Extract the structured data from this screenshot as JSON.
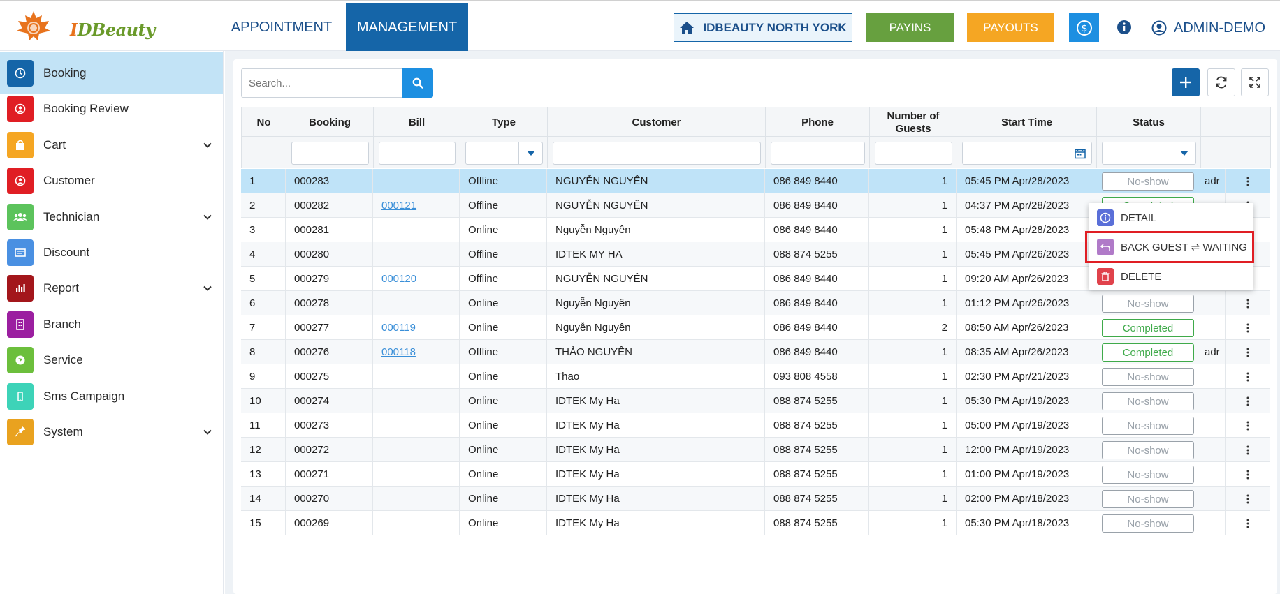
{
  "header": {
    "logo_text_i": "I",
    "logo_text_rest": "DBeauty",
    "tabs": [
      {
        "label": "APPOINTMENT",
        "active": false
      },
      {
        "label": "MANAGEMENT",
        "active": true
      }
    ],
    "branch_label": "IDBEAUTY NORTH YORK",
    "payins_label": "PAYINS",
    "payouts_label": "PAYOUTS",
    "user_label": "ADMIN-DEMO",
    "colors": {
      "primary": "#1565a8",
      "payins": "#67a03f",
      "payouts": "#f5a623",
      "accent": "#1d8fe1"
    }
  },
  "sidebar": {
    "items": [
      {
        "label": "Booking",
        "icon": "clock-icon",
        "color": "#1565a8",
        "active": true,
        "expandable": false
      },
      {
        "label": "Booking Review",
        "icon": "review-icon",
        "color": "#e01e24",
        "active": false,
        "expandable": false
      },
      {
        "label": "Cart",
        "icon": "bag-icon",
        "color": "#f5a623",
        "active": false,
        "expandable": true
      },
      {
        "label": "Customer",
        "icon": "user-icon",
        "color": "#e01e24",
        "active": false,
        "expandable": false
      },
      {
        "label": "Technician",
        "icon": "group-icon",
        "color": "#5cc35c",
        "active": false,
        "expandable": true
      },
      {
        "label": "Discount",
        "icon": "card-icon",
        "color": "#4a90e2",
        "active": false,
        "expandable": false
      },
      {
        "label": "Report",
        "icon": "chart-icon",
        "color": "#a3161b",
        "active": false,
        "expandable": true
      },
      {
        "label": "Branch",
        "icon": "building-icon",
        "color": "#9b1fa0",
        "active": false,
        "expandable": false
      },
      {
        "label": "Service",
        "icon": "globe-icon",
        "color": "#6cbf3c",
        "active": false,
        "expandable": false
      },
      {
        "label": "Sms Campaign",
        "icon": "phone-icon",
        "color": "#3dd3b8",
        "active": false,
        "expandable": false
      },
      {
        "label": "System",
        "icon": "wrench-icon",
        "color": "#e9a21f",
        "active": false,
        "expandable": true
      }
    ]
  },
  "toolbar": {
    "search_placeholder": "Search..."
  },
  "table": {
    "columns": [
      "No",
      "Booking",
      "Bill",
      "Type",
      "Customer",
      "Phone",
      "Number of Guests",
      "Start Time",
      "Status"
    ],
    "rows": [
      {
        "no": "1",
        "booking": "000283",
        "bill": "",
        "type": "Offline",
        "customer": "NGUYỄN NGUYÊN",
        "phone": "086 849 8440",
        "guests": "1",
        "start": "05:45 PM Apr/28/2023",
        "status": "No-show",
        "extra": "adr",
        "selected": true
      },
      {
        "no": "2",
        "booking": "000282",
        "bill": "000121",
        "type": "Offline",
        "customer": "NGUYỄN NGUYÊN",
        "phone": "086 849 8440",
        "guests": "1",
        "start": "04:37 PM Apr/28/2023",
        "status": "Completed",
        "extra": "",
        "selected": false
      },
      {
        "no": "3",
        "booking": "000281",
        "bill": "",
        "type": "Online",
        "customer": "Nguyễn Nguyên",
        "phone": "086 849 8440",
        "guests": "1",
        "start": "05:48 PM Apr/28/2023",
        "status": "",
        "extra": "",
        "selected": false
      },
      {
        "no": "4",
        "booking": "000280",
        "bill": "",
        "type": "Offline",
        "customer": "IDTEK MY HA",
        "phone": "088 874 5255",
        "guests": "1",
        "start": "05:45 PM Apr/26/2023",
        "status": "",
        "extra": "",
        "selected": false
      },
      {
        "no": "5",
        "booking": "000279",
        "bill": "000120",
        "type": "Offline",
        "customer": "NGUYỄN NGUYÊN",
        "phone": "086 849 8440",
        "guests": "1",
        "start": "09:20 AM Apr/26/2023",
        "status": "",
        "extra": "",
        "selected": false
      },
      {
        "no": "6",
        "booking": "000278",
        "bill": "",
        "type": "Online",
        "customer": "Nguyễn Nguyên",
        "phone": "086 849 8440",
        "guests": "1",
        "start": "01:12 PM Apr/26/2023",
        "status": "No-show",
        "extra": "",
        "selected": false
      },
      {
        "no": "7",
        "booking": "000277",
        "bill": "000119",
        "type": "Online",
        "customer": "Nguyễn Nguyên",
        "phone": "086 849 8440",
        "guests": "2",
        "start": "08:50 AM Apr/26/2023",
        "status": "Completed",
        "extra": "",
        "selected": false
      },
      {
        "no": "8",
        "booking": "000276",
        "bill": "000118",
        "type": "Offline",
        "customer": "THẢO NGUYÊN",
        "phone": "086 849 8440",
        "guests": "1",
        "start": "08:35 AM Apr/26/2023",
        "status": "Completed",
        "extra": "adr",
        "selected": false
      },
      {
        "no": "9",
        "booking": "000275",
        "bill": "",
        "type": "Online",
        "customer": "Thao",
        "phone": "093 808 4558",
        "guests": "1",
        "start": "02:30 PM Apr/21/2023",
        "status": "No-show",
        "extra": "",
        "selected": false
      },
      {
        "no": "10",
        "booking": "000274",
        "bill": "",
        "type": "Online",
        "customer": "IDTEK My Ha",
        "phone": "088 874 5255",
        "guests": "1",
        "start": "05:30 PM Apr/19/2023",
        "status": "No-show",
        "extra": "",
        "selected": false
      },
      {
        "no": "11",
        "booking": "000273",
        "bill": "",
        "type": "Online",
        "customer": "IDTEK My Ha",
        "phone": "088 874 5255",
        "guests": "1",
        "start": "05:00 PM Apr/19/2023",
        "status": "No-show",
        "extra": "",
        "selected": false
      },
      {
        "no": "12",
        "booking": "000272",
        "bill": "",
        "type": "Online",
        "customer": "IDTEK My Ha",
        "phone": "088 874 5255",
        "guests": "1",
        "start": "12:00 PM Apr/19/2023",
        "status": "No-show",
        "extra": "",
        "selected": false
      },
      {
        "no": "13",
        "booking": "000271",
        "bill": "",
        "type": "Online",
        "customer": "IDTEK My Ha",
        "phone": "088 874 5255",
        "guests": "1",
        "start": "01:00 PM Apr/19/2023",
        "status": "No-show",
        "extra": "",
        "selected": false
      },
      {
        "no": "14",
        "booking": "000270",
        "bill": "",
        "type": "Online",
        "customer": "IDTEK My Ha",
        "phone": "088 874 5255",
        "guests": "1",
        "start": "02:00 PM Apr/18/2023",
        "status": "No-show",
        "extra": "",
        "selected": false
      },
      {
        "no": "15",
        "booking": "000269",
        "bill": "",
        "type": "Online",
        "customer": "IDTEK My Ha",
        "phone": "088 874 5255",
        "guests": "1",
        "start": "05:30 PM Apr/18/2023",
        "status": "No-show",
        "extra": "",
        "selected": false
      }
    ]
  },
  "context_menu": {
    "items": [
      {
        "label": "DETAIL",
        "icon": "info-icon",
        "color": "#5a6fd8"
      },
      {
        "label": "BACK GUEST ⇌ WAITING",
        "icon": "back-arrow-icon",
        "color": "#b07ac8"
      },
      {
        "label": "DELETE",
        "icon": "trash-icon",
        "color": "#e0424b"
      }
    ]
  }
}
